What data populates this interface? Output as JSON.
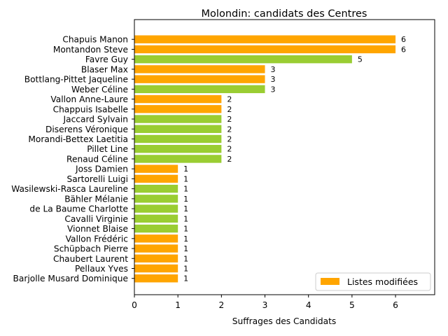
{
  "chart_data": {
    "type": "bar",
    "orientation": "horizontal",
    "title": "Molondin: candidats des Centres",
    "xlabel": "Suffrages des Candidats",
    "ylabel": "",
    "xlim": [
      0,
      6.9
    ],
    "xticks": [
      "0",
      "1",
      "2",
      "3",
      "4",
      "5",
      "6"
    ],
    "grid": false,
    "legend": {
      "position": "lower-right",
      "label": "Listes modifiées",
      "color": "#ffa500"
    },
    "colors": {
      "orange": "#ffa500",
      "green": "#9acd32"
    },
    "bars": [
      {
        "name": "Chapuis Manon",
        "value": 6,
        "label": "6",
        "color": "orange"
      },
      {
        "name": "Montandon Steve",
        "value": 6,
        "label": "6",
        "color": "orange"
      },
      {
        "name": "Favre Guy",
        "value": 5,
        "label": "5",
        "color": "green"
      },
      {
        "name": "Blaser Max",
        "value": 3,
        "label": "3",
        "color": "orange"
      },
      {
        "name": "Bottlang-Pittet Jaqueline",
        "value": 3,
        "label": "3",
        "color": "orange"
      },
      {
        "name": "Weber Céline",
        "value": 3,
        "label": "3",
        "color": "green"
      },
      {
        "name": "Vallon Anne-Laure",
        "value": 2,
        "label": "2",
        "color": "orange"
      },
      {
        "name": "Chappuis Isabelle",
        "value": 2,
        "label": "2",
        "color": "orange"
      },
      {
        "name": "Jaccard Sylvain",
        "value": 2,
        "label": "2",
        "color": "green"
      },
      {
        "name": "Diserens Véronique",
        "value": 2,
        "label": "2",
        "color": "green"
      },
      {
        "name": "Morandi-Bettex Laetitia",
        "value": 2,
        "label": "2",
        "color": "green"
      },
      {
        "name": "Pillet Line",
        "value": 2,
        "label": "2",
        "color": "green"
      },
      {
        "name": "Renaud Céline",
        "value": 2,
        "label": "2",
        "color": "green"
      },
      {
        "name": "Joss Damien",
        "value": 1,
        "label": "1",
        "color": "orange"
      },
      {
        "name": "Sartorelli Luigi",
        "value": 1,
        "label": "1",
        "color": "orange"
      },
      {
        "name": "Wasilewski-Rasca Laureline",
        "value": 1,
        "label": "1",
        "color": "green"
      },
      {
        "name": "Bähler Mélanie",
        "value": 1,
        "label": "1",
        "color": "green"
      },
      {
        "name": "de La Baume Charlotte",
        "value": 1,
        "label": "1",
        "color": "green"
      },
      {
        "name": "Cavalli Virginie",
        "value": 1,
        "label": "1",
        "color": "green"
      },
      {
        "name": "Vionnet Blaise",
        "value": 1,
        "label": "1",
        "color": "green"
      },
      {
        "name": "Vallon Frédéric",
        "value": 1,
        "label": "1",
        "color": "orange"
      },
      {
        "name": "Schüpbach Pierre",
        "value": 1,
        "label": "1",
        "color": "orange"
      },
      {
        "name": "Chaubert Laurent",
        "value": 1,
        "label": "1",
        "color": "orange"
      },
      {
        "name": "Pellaux Yves",
        "value": 1,
        "label": "1",
        "color": "orange"
      },
      {
        "name": "Barjolle Musard Dominique",
        "value": 1,
        "label": "1",
        "color": "orange"
      }
    ]
  }
}
